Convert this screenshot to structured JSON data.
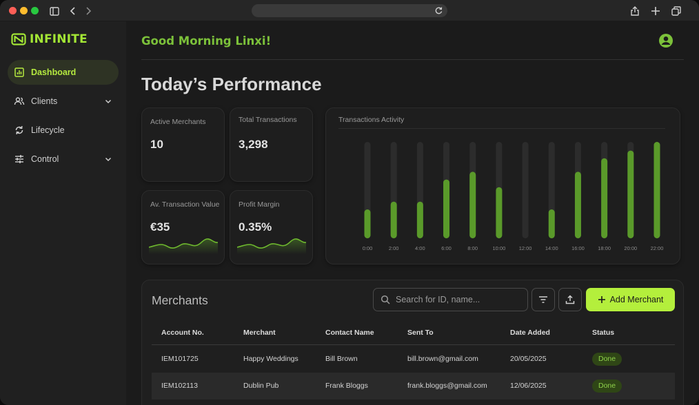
{
  "app": {
    "name": "INFINITE"
  },
  "sidebar": {
    "items": [
      {
        "label": "Dashboard",
        "icon": "bar-chart-icon",
        "active": true
      },
      {
        "label": "Clients",
        "icon": "users-icon",
        "expandable": true
      },
      {
        "label": "Lifecycle",
        "icon": "cycle-icon"
      },
      {
        "label": "Control",
        "icon": "sliders-icon",
        "expandable": true
      }
    ]
  },
  "header": {
    "greeting": "Good Morning Linxi!"
  },
  "page": {
    "title": "Today’s Performance"
  },
  "stats": [
    {
      "label": "Active Merchants",
      "value": "10"
    },
    {
      "label": "Total Transactions",
      "value": "3,298"
    },
    {
      "label": "Av. Transaction Value",
      "value": "€35"
    },
    {
      "label": "Profit Margin",
      "value": "0.35%"
    }
  ],
  "chart_data": {
    "type": "bar",
    "title": "Transactions Activity",
    "categories": [
      "0:00",
      "2:00",
      "4:00",
      "6:00",
      "8:00",
      "10:00",
      "12:00",
      "14:00",
      "16:00",
      "18:00",
      "20:00",
      "22:00"
    ],
    "values": [
      30,
      38,
      38,
      61,
      69,
      53,
      0,
      30,
      69,
      83,
      91,
      100
    ],
    "ylim": [
      0,
      100
    ],
    "xlabel": "",
    "ylabel": "",
    "grid": false,
    "colors": {
      "bar": "#5a9a2a",
      "track": "#2c2c2c"
    }
  },
  "merchants": {
    "title": "Merchants",
    "search_placeholder": "Search for ID, name...",
    "add_label": "Add Merchant",
    "columns": [
      "Account No.",
      "Merchant",
      "Contact Name",
      "Sent To",
      "Date Added",
      "Status"
    ],
    "rows": [
      [
        "IEM101725",
        "Happy Weddings",
        "Bill Brown",
        "bill.brown@gmail.com",
        "20/05/2025",
        "Done"
      ],
      [
        "IEM102113",
        "Dublin Pub",
        "Frank Bloggs",
        "frank.bloggs@gmail.com",
        "12/06/2025",
        "Done"
      ]
    ]
  },
  "colors": {
    "accent": "#b4ef3c",
    "accent_text": "#7cc13a",
    "status_done_bg": "#2f4616",
    "status_done_text": "#8ed14a"
  }
}
